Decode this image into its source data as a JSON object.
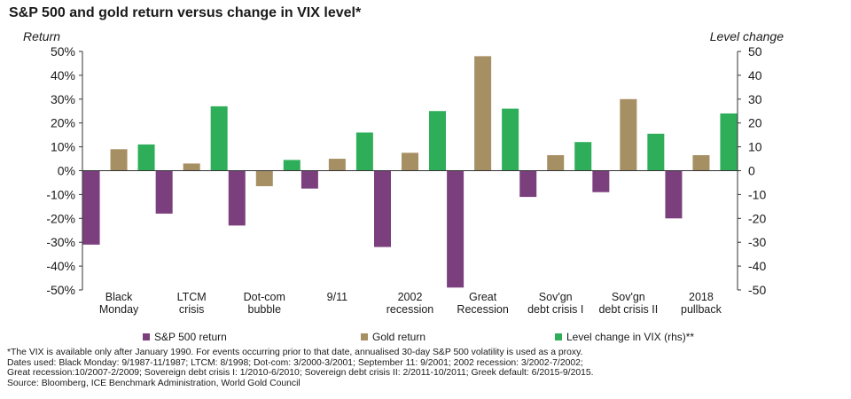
{
  "title": "S&P 500 and gold return versus change in VIX level*",
  "left_axis_label": "Return",
  "right_axis_label": "Level change",
  "legend": [
    {
      "label": "S&P 500 return",
      "color": "#7b3f7e"
    },
    {
      "label": "Gold return",
      "color": "#a68f63"
    },
    {
      "label": "Level change in VIX (rhs)**",
      "color": "#2fae5a"
    }
  ],
  "notes": [
    "*The VIX is available only after January 1990. For events occurring prior to that date, annualised 30-day S&P 500 volatility is used as a proxy.",
    "Dates used: Black Monday: 9/1987-11/1987; LTCM: 8/1998; Dot-com: 3/2000-3/2001; September 11: 9/2001; 2002 recession: 3/2002-7/2002;",
    "Great recession:10/2007-2/2009; Sovereign debt crisis I: 1/2010-6/2010; Sovereign debt crisis II: 2/2011-10/2011; Greek default: 6/2015-9/2015.",
    "Source: Bloomberg, ICE Benchmark Administration, World Gold Council"
  ],
  "chart_data": {
    "type": "bar",
    "title": "S&P 500 and gold return versus change in VIX level*",
    "categories": [
      [
        "Black",
        "Monday"
      ],
      [
        "LTCM",
        "crisis"
      ],
      [
        "Dot-com",
        "bubble"
      ],
      [
        "9/11"
      ],
      [
        "2002",
        "recession"
      ],
      [
        "Great",
        "Recession"
      ],
      [
        "Sov'gn",
        "debt crisis I"
      ],
      [
        "Sov'gn",
        "debt crisis II"
      ],
      [
        "2018",
        "pullback"
      ]
    ],
    "left_axis": {
      "label": "Return",
      "min": -50,
      "max": 50,
      "step": 10,
      "unit": "%"
    },
    "right_axis": {
      "label": "Level change",
      "min": -50,
      "max": 50,
      "step": 10
    },
    "series": [
      {
        "name": "S&P 500 return",
        "axis": "left",
        "color": "#7b3f7e",
        "values": [
          -31,
          -18,
          -23,
          -7.5,
          -32,
          -49,
          -11,
          -9,
          -20
        ]
      },
      {
        "name": "Gold return",
        "axis": "left",
        "color": "#a68f63",
        "values": [
          9,
          3,
          -6.5,
          5,
          7.5,
          48,
          6.5,
          30,
          6.5
        ]
      },
      {
        "name": "Level change in VIX (rhs)**",
        "axis": "right",
        "color": "#2fae5a",
        "values": [
          11,
          27,
          4.5,
          16,
          25,
          26,
          12,
          15.5,
          24
        ]
      }
    ],
    "grid": false,
    "legend_position": "bottom"
  }
}
